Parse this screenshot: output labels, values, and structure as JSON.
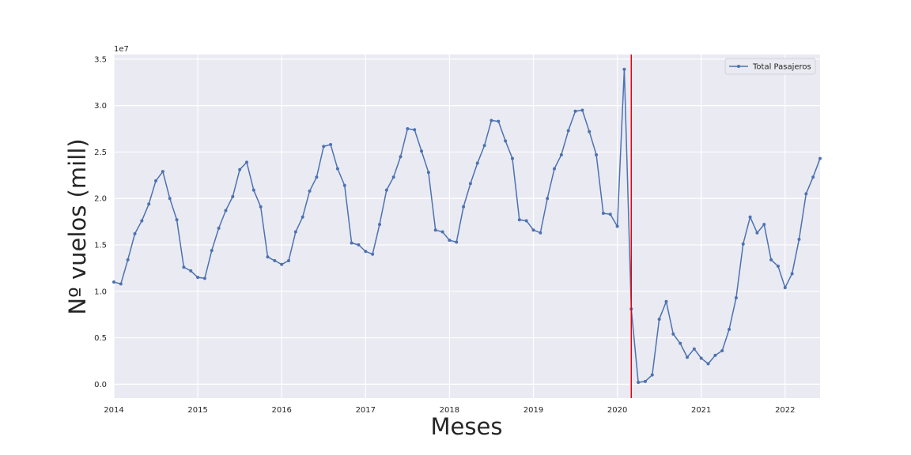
{
  "chart_data": {
    "type": "line",
    "title": "",
    "xlabel": "Meses",
    "ylabel": "Nº vuelos (mill)",
    "y_offset_text": "1e7",
    "y_multiplier": 10000000,
    "xlim": [
      "2014-01",
      "2022-06"
    ],
    "ylim": [
      -0.15,
      3.55
    ],
    "x_ticks": [
      "2014",
      "2015",
      "2016",
      "2017",
      "2018",
      "2019",
      "2020",
      "2021",
      "2022"
    ],
    "y_ticks": [
      "0.0",
      "0.5",
      "1.0",
      "1.5",
      "2.0",
      "2.5",
      "3.0",
      "3.5"
    ],
    "grid": true,
    "legend_position": "top-right",
    "series": [
      {
        "name": "Total Pasajeros",
        "color": "#4c72b0",
        "marker": "circle",
        "x": [
          "2014-01",
          "2014-02",
          "2014-03",
          "2014-04",
          "2014-05",
          "2014-06",
          "2014-07",
          "2014-08",
          "2014-09",
          "2014-10",
          "2014-11",
          "2014-12",
          "2015-01",
          "2015-02",
          "2015-03",
          "2015-04",
          "2015-05",
          "2015-06",
          "2015-07",
          "2015-08",
          "2015-09",
          "2015-10",
          "2015-11",
          "2015-12",
          "2016-01",
          "2016-02",
          "2016-03",
          "2016-04",
          "2016-05",
          "2016-06",
          "2016-07",
          "2016-08",
          "2016-09",
          "2016-10",
          "2016-11",
          "2016-12",
          "2017-01",
          "2017-02",
          "2017-03",
          "2017-04",
          "2017-05",
          "2017-06",
          "2017-07",
          "2017-08",
          "2017-09",
          "2017-10",
          "2017-11",
          "2017-12",
          "2018-01",
          "2018-02",
          "2018-03",
          "2018-04",
          "2018-05",
          "2018-06",
          "2018-07",
          "2018-08",
          "2018-09",
          "2018-10",
          "2018-11",
          "2018-12",
          "2019-01",
          "2019-02",
          "2019-03",
          "2019-04",
          "2019-05",
          "2019-06",
          "2019-07",
          "2019-08",
          "2019-09",
          "2019-10",
          "2019-11",
          "2019-12",
          "2020-01",
          "2020-02",
          "2020-03",
          "2020-04",
          "2020-05",
          "2020-06",
          "2020-07",
          "2020-08",
          "2020-09",
          "2020-10",
          "2020-11",
          "2020-12",
          "2021-01",
          "2021-02",
          "2021-03",
          "2021-04",
          "2021-05",
          "2021-06",
          "2021-07",
          "2021-08",
          "2021-09",
          "2021-10",
          "2021-11",
          "2021-12",
          "2022-01",
          "2022-02",
          "2022-03",
          "2022-04",
          "2022-05",
          "2022-06"
        ],
        "y": [
          1.1,
          1.08,
          1.34,
          1.62,
          1.76,
          1.94,
          2.19,
          2.29,
          2.0,
          1.77,
          1.26,
          1.22,
          1.15,
          1.14,
          1.44,
          1.68,
          1.87,
          2.02,
          2.31,
          2.39,
          2.09,
          1.91,
          1.37,
          1.33,
          1.29,
          1.33,
          1.64,
          1.8,
          2.08,
          2.23,
          2.56,
          2.58,
          2.32,
          2.14,
          1.52,
          1.5,
          1.43,
          1.4,
          1.72,
          2.09,
          2.23,
          2.45,
          2.75,
          2.74,
          2.51,
          2.28,
          1.66,
          1.64,
          1.55,
          1.53,
          1.91,
          2.16,
          2.38,
          2.57,
          2.84,
          2.83,
          2.62,
          2.43,
          1.77,
          1.76,
          1.66,
          1.63,
          2.0,
          2.32,
          2.47,
          2.73,
          2.94,
          2.95,
          2.72,
          2.47,
          1.84,
          1.83,
          1.7,
          3.39,
          0.81,
          0.02,
          0.03,
          0.1,
          0.7,
          0.89,
          0.54,
          0.44,
          0.29,
          0.38,
          0.28,
          0.22,
          0.31,
          0.36,
          0.59,
          0.93,
          1.51,
          1.8,
          1.63,
          1.72,
          1.34,
          1.27,
          1.04,
          1.19,
          1.56,
          2.05,
          2.23,
          2.43
        ]
      }
    ],
    "vline": {
      "x": "2020-03",
      "color": "#e8000b"
    }
  }
}
